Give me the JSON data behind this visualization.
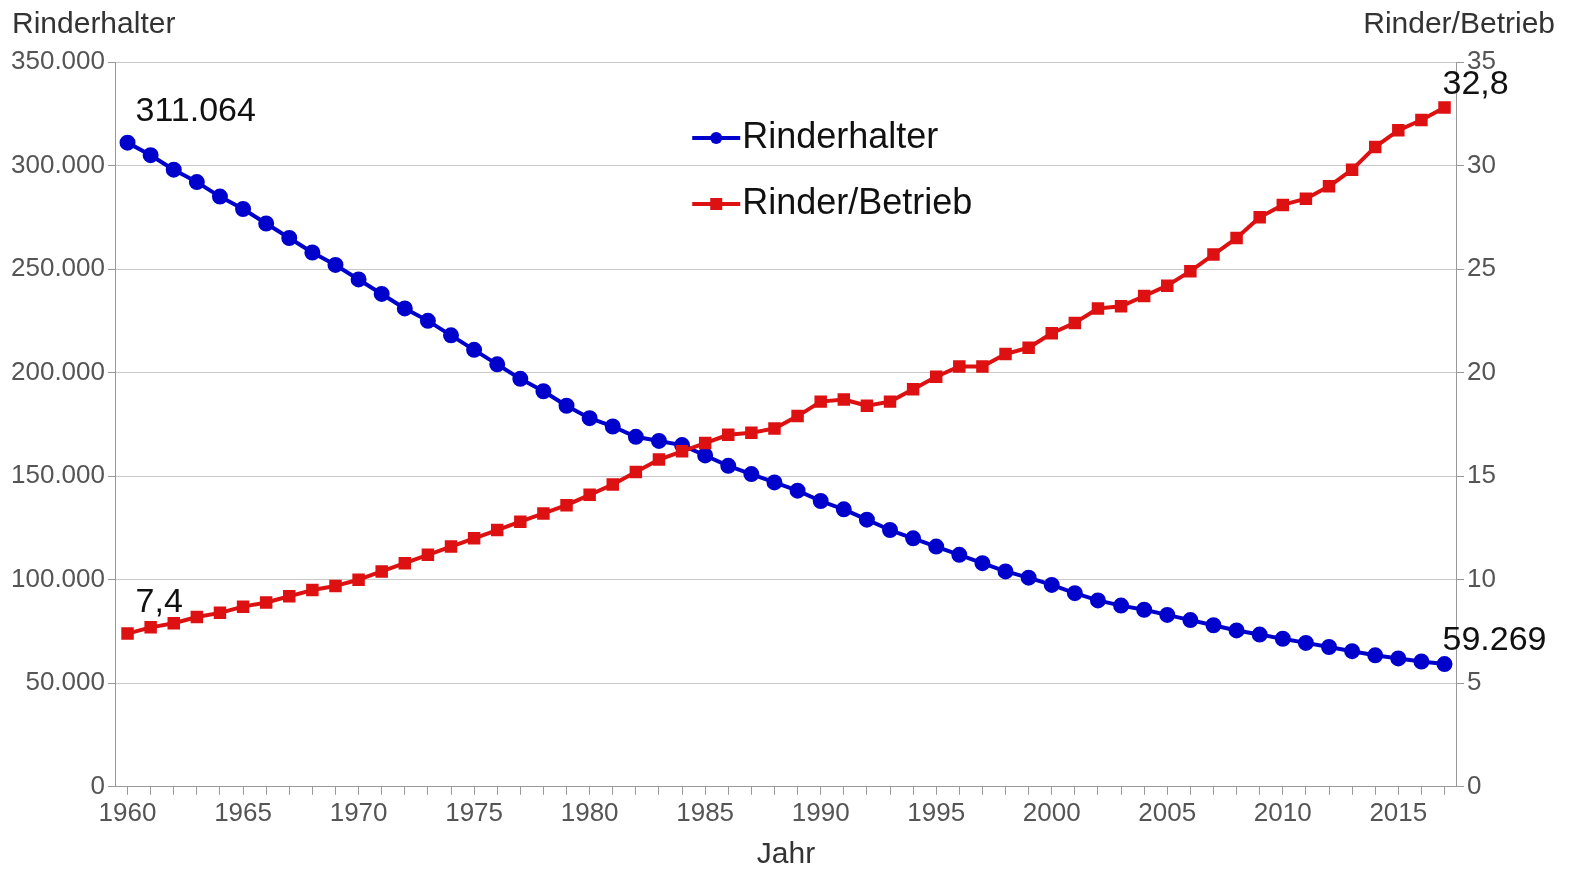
{
  "chart_data": {
    "type": "line",
    "xlabel": "Jahr",
    "ylabel": "Rinderhalter",
    "y2label": "Rinder/Betrieb",
    "x": [
      1960,
      1961,
      1962,
      1963,
      1964,
      1965,
      1966,
      1967,
      1968,
      1969,
      1970,
      1971,
      1972,
      1973,
      1974,
      1975,
      1976,
      1977,
      1978,
      1979,
      1980,
      1981,
      1982,
      1983,
      1984,
      1985,
      1986,
      1987,
      1988,
      1989,
      1990,
      1991,
      1992,
      1993,
      1994,
      1995,
      1996,
      1997,
      1998,
      1999,
      2000,
      2001,
      2002,
      2003,
      2004,
      2005,
      2006,
      2007,
      2008,
      2009,
      2010,
      2011,
      2012,
      2013,
      2014,
      2015,
      2016,
      2017
    ],
    "series": [
      {
        "name": "Rinderhalter",
        "color": "#0000cc",
        "marker": "circle",
        "values": [
          311064,
          305000,
          298000,
          292000,
          285000,
          279000,
          272000,
          265000,
          258000,
          252000,
          245000,
          238000,
          231000,
          225000,
          218000,
          211000,
          204000,
          197000,
          191000,
          184000,
          178000,
          174000,
          169000,
          167000,
          165000,
          160000,
          155000,
          151000,
          147000,
          143000,
          138000,
          134000,
          129000,
          124000,
          120000,
          116000,
          112000,
          108000,
          104000,
          101000,
          97500,
          93500,
          90000,
          87500,
          85500,
          83000,
          80500,
          78000,
          75500,
          73500,
          71500,
          69500,
          67500,
          65500,
          63500,
          62000,
          60500,
          59269
        ],
        "value_labels": [
          "311.064",
          null,
          null,
          null,
          null,
          null,
          null,
          null,
          null,
          null,
          null,
          null,
          null,
          null,
          null,
          null,
          null,
          null,
          null,
          null,
          null,
          null,
          null,
          null,
          null,
          null,
          null,
          null,
          null,
          null,
          null,
          null,
          null,
          null,
          null,
          null,
          null,
          null,
          null,
          null,
          null,
          null,
          null,
          null,
          null,
          null,
          null,
          null,
          null,
          null,
          null,
          null,
          null,
          null,
          null,
          null,
          null,
          "59.269"
        ]
      },
      {
        "name": "Rinder/Betrieb",
        "color": "#dd1111",
        "marker": "square",
        "axis": "y2",
        "values": [
          7.4,
          7.7,
          7.9,
          8.2,
          8.4,
          8.7,
          8.9,
          9.2,
          9.5,
          9.7,
          10.0,
          10.4,
          10.8,
          11.2,
          11.6,
          12.0,
          12.4,
          12.8,
          13.2,
          13.6,
          14.1,
          14.6,
          15.2,
          15.8,
          16.2,
          16.6,
          17.0,
          17.1,
          17.3,
          17.9,
          18.6,
          18.7,
          18.4,
          18.6,
          19.2,
          19.8,
          20.3,
          20.3,
          20.9,
          21.2,
          21.9,
          22.4,
          23.1,
          23.2,
          23.7,
          24.2,
          24.9,
          25.7,
          26.5,
          27.5,
          28.1,
          28.4,
          29.0,
          29.8,
          30.9,
          31.7,
          32.2,
          32.8
        ],
        "value_labels": [
          "7,4",
          null,
          null,
          null,
          null,
          null,
          null,
          null,
          null,
          null,
          null,
          null,
          null,
          null,
          null,
          null,
          null,
          null,
          null,
          null,
          null,
          null,
          null,
          null,
          null,
          null,
          null,
          null,
          null,
          null,
          null,
          null,
          null,
          null,
          null,
          null,
          null,
          null,
          null,
          null,
          null,
          null,
          null,
          null,
          null,
          null,
          null,
          null,
          null,
          null,
          null,
          null,
          null,
          null,
          null,
          null,
          null,
          "32,8"
        ]
      }
    ],
    "xlim": [
      1959.5,
      2017.5
    ],
    "xticks": [
      1960,
      {
        "value": 1961,
        "label": null
      },
      {
        "value": 1962,
        "label": null
      },
      {
        "value": 1963,
        "label": null
      },
      {
        "value": 1964,
        "label": null
      },
      1965,
      {
        "value": 1966,
        "label": null
      },
      {
        "value": 1967,
        "label": null
      },
      {
        "value": 1968,
        "label": null
      },
      {
        "value": 1969,
        "label": null
      },
      1970,
      {
        "value": 1971,
        "label": null
      },
      {
        "value": 1972,
        "label": null
      },
      {
        "value": 1973,
        "label": null
      },
      {
        "value": 1974,
        "label": null
      },
      1975,
      {
        "value": 1976,
        "label": null
      },
      {
        "value": 1977,
        "label": null
      },
      {
        "value": 1978,
        "label": null
      },
      {
        "value": 1979,
        "label": null
      },
      1980,
      {
        "value": 1981,
        "label": null
      },
      {
        "value": 1982,
        "label": null
      },
      {
        "value": 1983,
        "label": null
      },
      {
        "value": 1984,
        "label": null
      },
      1985,
      {
        "value": 1986,
        "label": null
      },
      {
        "value": 1987,
        "label": null
      },
      {
        "value": 1988,
        "label": null
      },
      {
        "value": 1989,
        "label": null
      },
      1990,
      {
        "value": 1991,
        "label": null
      },
      {
        "value": 1992,
        "label": null
      },
      {
        "value": 1993,
        "label": null
      },
      {
        "value": 1994,
        "label": null
      },
      1995,
      {
        "value": 1996,
        "label": null
      },
      {
        "value": 1997,
        "label": null
      },
      {
        "value": 1998,
        "label": null
      },
      {
        "value": 1999,
        "label": null
      },
      2000,
      {
        "value": 2001,
        "label": null
      },
      {
        "value": 2002,
        "label": null
      },
      {
        "value": 2003,
        "label": null
      },
      {
        "value": 2004,
        "label": null
      },
      2005,
      {
        "value": 2006,
        "label": null
      },
      {
        "value": 2007,
        "label": null
      },
      {
        "value": 2008,
        "label": null
      },
      {
        "value": 2009,
        "label": null
      },
      2010,
      {
        "value": 2011,
        "label": null
      },
      {
        "value": 2012,
        "label": null
      },
      {
        "value": 2013,
        "label": null
      },
      {
        "value": 2014,
        "label": null
      },
      2015,
      {
        "value": 2016,
        "label": null
      },
      {
        "value": 2017,
        "label": null
      }
    ],
    "ylim": [
      0,
      350000
    ],
    "yticks": [
      0,
      {
        "value": 50000,
        "label": "50.000"
      },
      {
        "value": 100000,
        "label": "100.000"
      },
      {
        "value": 150000,
        "label": "150.000"
      },
      {
        "value": 200000,
        "label": "200.000"
      },
      {
        "value": 250000,
        "label": "250.000"
      },
      {
        "value": 300000,
        "label": "300.000"
      },
      {
        "value": 350000,
        "label": "350.000"
      }
    ],
    "y2lim": [
      0,
      35
    ],
    "y2ticks": [
      0,
      5,
      10,
      15,
      20,
      25,
      30,
      35
    ],
    "grid": "y",
    "legend": "top"
  }
}
